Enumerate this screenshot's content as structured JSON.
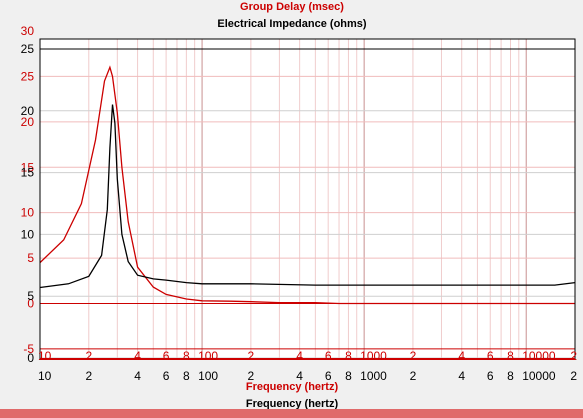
{
  "chart_data": {
    "type": "line",
    "title": "Group Delay (msec)",
    "subtitle": "Electrical Impedance (ohms)",
    "xlabel": "Frequency (hertz)",
    "xlabel_secondary": "Frequency (hertz)",
    "x_scale": "log",
    "xlim": [
      10,
      20000
    ],
    "x_tick_labels": [
      "10",
      "2",
      "4",
      "6",
      "8",
      "100",
      "2",
      "4",
      "6",
      "8",
      "1000",
      "2",
      "4",
      "6",
      "8",
      "10000",
      "2"
    ],
    "grid": true,
    "left_axis_red": {
      "label": "Group Delay (msec)",
      "ylim": [
        -6,
        30
      ],
      "ticks": [
        30,
        25,
        20,
        15,
        10,
        5,
        0,
        -5
      ]
    },
    "left_axis_black": {
      "label": "Electrical Impedance (ohms)",
      "ylim": [
        0,
        25
      ],
      "ticks": [
        25,
        20,
        15,
        10,
        5,
        0
      ]
    },
    "series": [
      {
        "name": "Group Delay (msec)",
        "color": "#cc0000",
        "axis": "left_axis_red",
        "x": [
          10,
          14,
          18,
          22,
          25,
          27,
          28,
          30,
          32,
          35,
          40,
          50,
          60,
          80,
          100,
          150,
          200,
          300,
          500,
          700,
          1000,
          2000,
          3000,
          5000,
          10000,
          20000
        ],
        "y": [
          4.5,
          7,
          11,
          18,
          24.5,
          26,
          25,
          21,
          15,
          9,
          4,
          1.8,
          1.0,
          0.5,
          0.3,
          0.25,
          0.2,
          0.1,
          0.1,
          0,
          0,
          0,
          0,
          0,
          0,
          0
        ]
      },
      {
        "name": "Electrical Impedance (ohms)",
        "color": "#000000",
        "axis": "left_axis_black",
        "x": [
          10,
          15,
          20,
          24,
          26,
          27,
          28,
          29,
          30,
          32,
          35,
          40,
          50,
          60,
          80,
          100,
          200,
          500,
          1000,
          2000,
          5000,
          10000,
          15000,
          20000
        ],
        "y": [
          5.7,
          6.0,
          6.6,
          8.3,
          12.0,
          17.0,
          20.5,
          19.0,
          14.5,
          10.0,
          7.8,
          6.7,
          6.4,
          6.3,
          6.1,
          6.0,
          6.0,
          5.9,
          5.9,
          5.9,
          5.9,
          5.9,
          5.9,
          6.1
        ]
      }
    ]
  }
}
